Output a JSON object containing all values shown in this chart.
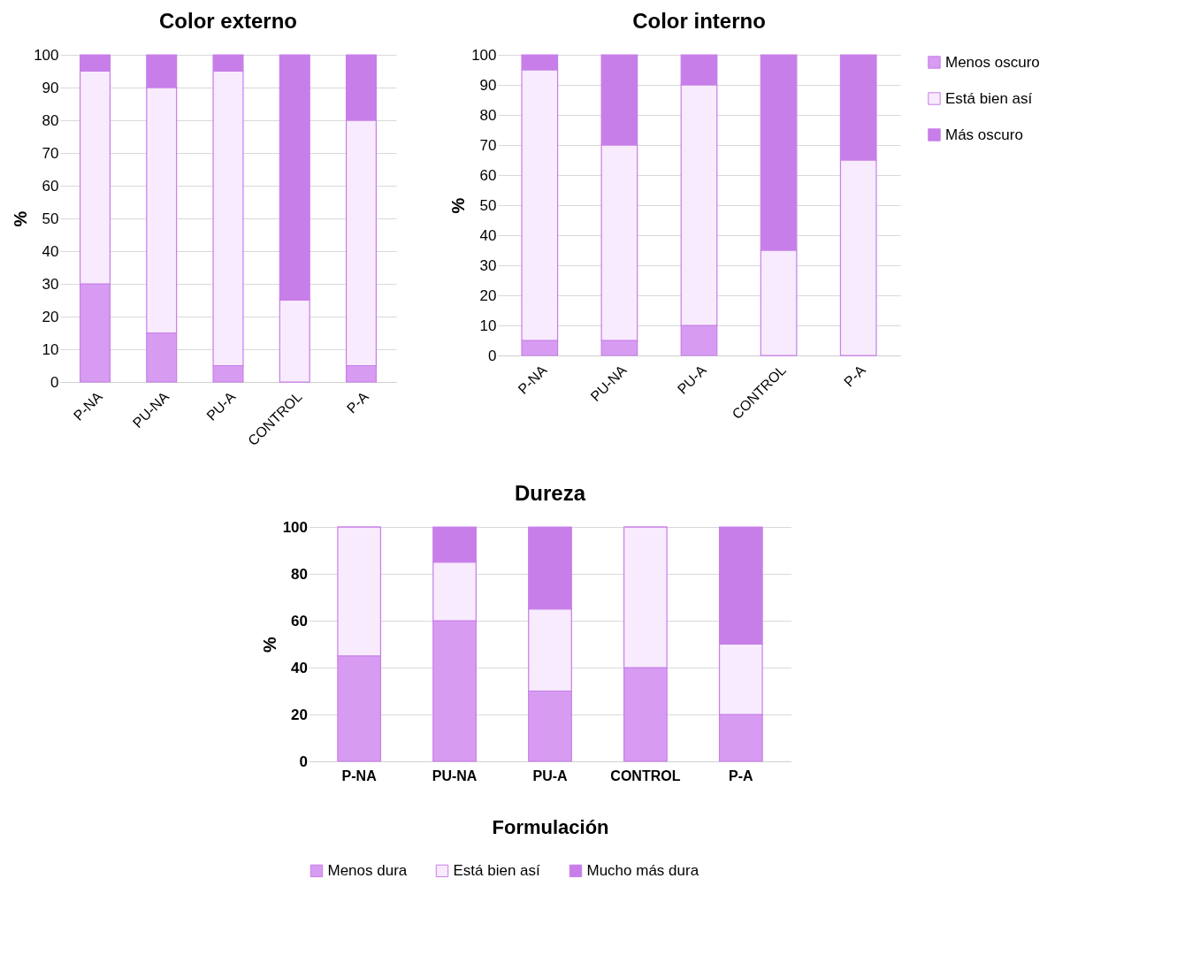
{
  "chart_data": [
    {
      "type": "bar",
      "title": "Color externo",
      "ylabel": "%",
      "categories": [
        "P-NA",
        "PU-NA",
        "PU-A",
        "CONTROL",
        "P-A"
      ],
      "stacked": true,
      "ylim": [
        0,
        100
      ],
      "yticks": [
        0,
        10,
        20,
        30,
        40,
        50,
        60,
        70,
        80,
        90,
        100
      ],
      "grid": "y",
      "legend": "right",
      "series": [
        {
          "name": "Menos oscuro",
          "color": "#d79cf2",
          "values": [
            30,
            15,
            5,
            0,
            5
          ]
        },
        {
          "name": "Está bien así",
          "color": "#f7ebfd",
          "values": [
            65,
            75,
            90,
            25,
            75
          ]
        },
        {
          "name": "Más oscuro",
          "color": "#c77ee8",
          "values": [
            5,
            10,
            5,
            75,
            20
          ]
        }
      ]
    },
    {
      "type": "bar",
      "title": "Color interno",
      "ylabel": "%",
      "categories": [
        "P-NA",
        "PU-NA",
        "PU-A",
        "CONTROL",
        "P-A"
      ],
      "stacked": true,
      "ylim": [
        0,
        100
      ],
      "yticks": [
        0,
        10,
        20,
        30,
        40,
        50,
        60,
        70,
        80,
        90,
        100
      ],
      "grid": "y",
      "series": [
        {
          "color": "#d79cf2",
          "values": [
            5,
            5,
            10,
            0,
            0
          ]
        },
        {
          "color": "#f7ebfd",
          "values": [
            90,
            65,
            80,
            35,
            65
          ]
        },
        {
          "color": "#c77ee8",
          "values": [
            5,
            30,
            10,
            65,
            35
          ]
        }
      ]
    },
    {
      "type": "bar",
      "title": "Dureza",
      "xlabel": "Formulación",
      "ylabel": "%",
      "categories": [
        "P-NA",
        "PU-NA",
        "PU-A",
        "CONTROL",
        "P-A"
      ],
      "stacked": true,
      "ylim": [
        0,
        100
      ],
      "yticks": [
        0,
        20,
        40,
        60,
        80,
        100
      ],
      "grid": "y",
      "legend": "bottom",
      "series": [
        {
          "name": "Menos dura",
          "color": "#d79cf2",
          "values": [
            45,
            60,
            30,
            40,
            20
          ]
        },
        {
          "name": "Está bien así",
          "color": "#f7ebfd",
          "values": [
            55,
            25,
            35,
            60,
            30
          ]
        },
        {
          "name": "Mucho más dura",
          "color": "#c77ee8",
          "values": [
            0,
            15,
            35,
            0,
            50
          ]
        }
      ]
    }
  ]
}
